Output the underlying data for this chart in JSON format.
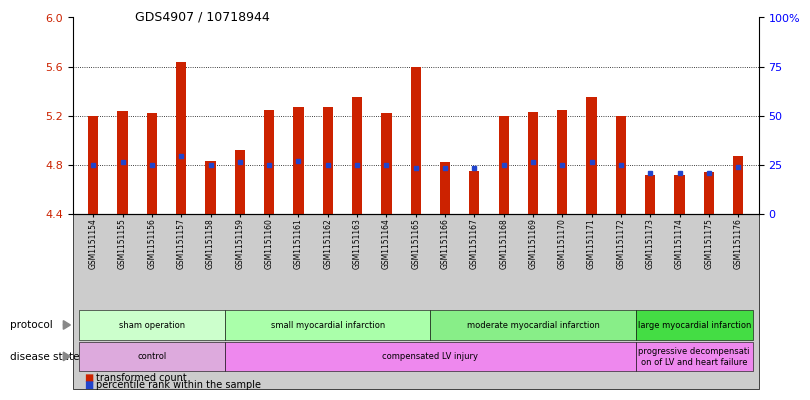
{
  "title": "GDS4907 / 10718944",
  "samples": [
    "GSM1151154",
    "GSM1151155",
    "GSM1151156",
    "GSM1151157",
    "GSM1151158",
    "GSM1151159",
    "GSM1151160",
    "GSM1151161",
    "GSM1151162",
    "GSM1151163",
    "GSM1151164",
    "GSM1151165",
    "GSM1151166",
    "GSM1151167",
    "GSM1151168",
    "GSM1151169",
    "GSM1151170",
    "GSM1151171",
    "GSM1151172",
    "GSM1151173",
    "GSM1151174",
    "GSM1151175",
    "GSM1151176"
  ],
  "transformed_counts": [
    5.2,
    5.24,
    5.22,
    5.64,
    4.83,
    4.92,
    5.25,
    5.27,
    5.27,
    5.35,
    5.22,
    5.6,
    4.82,
    4.75,
    5.2,
    5.23,
    5.25,
    5.35,
    5.2,
    4.72,
    4.72,
    4.74,
    4.87
  ],
  "percentile_ranks_y": [
    4.8,
    4.82,
    4.8,
    4.87,
    4.8,
    4.82,
    4.8,
    4.83,
    4.8,
    4.8,
    4.8,
    4.77,
    4.77,
    4.77,
    4.8,
    4.82,
    4.8,
    4.82,
    4.8,
    4.73,
    4.73,
    4.73,
    4.78
  ],
  "base_value": 4.4,
  "ylim_min": 4.4,
  "ylim_max": 6.0,
  "bar_color": "#CC2200",
  "dot_color": "#2244CC",
  "protocol_groups": [
    {
      "label": "sham operation",
      "start": 0,
      "end": 4,
      "color": "#CCFFCC"
    },
    {
      "label": "small myocardial infarction",
      "start": 5,
      "end": 11,
      "color": "#AAFFAA"
    },
    {
      "label": "moderate myocardial infarction",
      "start": 12,
      "end": 18,
      "color": "#88EE88"
    },
    {
      "label": "large myocardial infarction",
      "start": 19,
      "end": 22,
      "color": "#44DD44"
    }
  ],
  "disease_groups": [
    {
      "label": "control",
      "start": 0,
      "end": 4,
      "color": "#DDAADD"
    },
    {
      "label": "compensated LV injury",
      "start": 5,
      "end": 18,
      "color": "#EE88EE"
    },
    {
      "label": "progressive decompensati\non of LV and heart failure",
      "start": 19,
      "end": 22,
      "color": "#EE88EE"
    }
  ],
  "yticks_left": [
    4.4,
    4.8,
    5.2,
    5.6,
    6.0
  ],
  "yticks_right_vals": [
    0,
    25,
    50,
    75,
    100
  ],
  "ytick_right_labels": [
    "0",
    "25",
    "50",
    "75",
    "100%"
  ],
  "grid_values": [
    4.8,
    5.2,
    5.6
  ],
  "bar_width": 0.35
}
